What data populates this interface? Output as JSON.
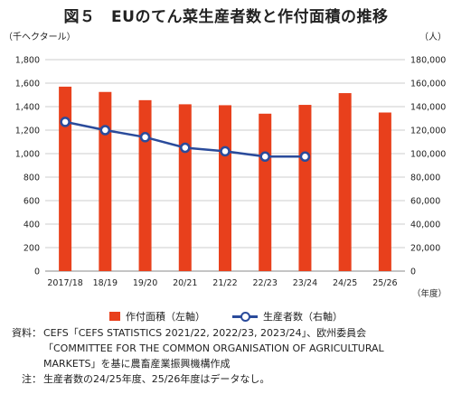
{
  "title": "図５　EUのてん菜生産者数と作付面積の推移",
  "unit_left": "（千ヘクタール）",
  "unit_right": "（人）",
  "x_axis_unit": "（年度）",
  "colors": {
    "bar": "#e8401c",
    "line": "#2a4b9b",
    "grid": "#cccccc"
  },
  "legend": {
    "bar_label": "作付面積（左軸）",
    "line_label": "生産者数（右軸）"
  },
  "notes": {
    "source_key": "資料：",
    "source_line1": "CEFS「CEFS STATISTICS 2021/22, 2022/23, 2023/24」、欧州委員会",
    "source_line2": "「COMMITTEE FOR THE COMMON ORGANISATION OF AGRICULTURAL",
    "source_line3": "MARKETS」を基に農畜産業振興機構作成",
    "note_key": "注：",
    "note_body": "生産者数の24/25年度、25/26年度はデータなし。"
  },
  "chart_data": {
    "type": "bar",
    "categories": [
      "2017/18",
      "18/19",
      "19/20",
      "20/21",
      "21/22",
      "22/23",
      "23/24",
      "24/25",
      "25/26"
    ],
    "series": [
      {
        "name": "作付面積（左軸）",
        "type": "bar",
        "axis": "left",
        "values": [
          1570,
          1525,
          1455,
          1420,
          1412,
          1340,
          1415,
          1515,
          1350
        ]
      },
      {
        "name": "生産者数（右軸）",
        "type": "line",
        "axis": "right",
        "values": [
          127000,
          120000,
          114000,
          105000,
          102000,
          97500,
          97500,
          null,
          null
        ]
      }
    ],
    "y_left": {
      "min": 0,
      "max": 1800,
      "step": 200,
      "ticks": [
        "0",
        "200",
        "400",
        "600",
        "800",
        "1,000",
        "1,200",
        "1,400",
        "1,600",
        "1,800"
      ]
    },
    "y_right": {
      "min": 0,
      "max": 180000,
      "step": 20000,
      "ticks": [
        "0",
        "20,000",
        "40,000",
        "60,000",
        "80,000",
        "100,000",
        "120,000",
        "140,000",
        "160,000",
        "180,000"
      ]
    },
    "grid": true,
    "legend_position": "bottom"
  }
}
